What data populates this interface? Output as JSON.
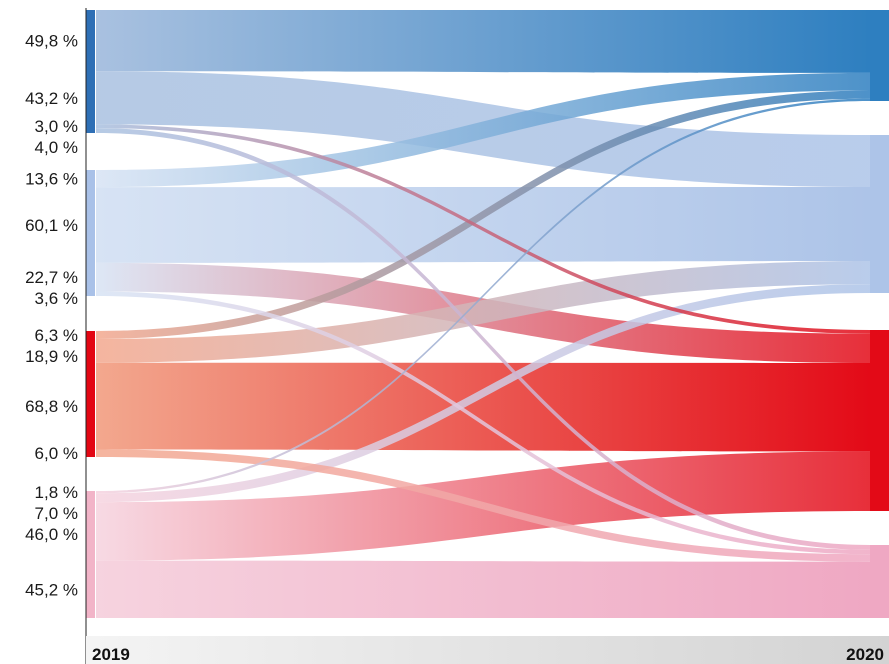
{
  "chart_data": {
    "type": "sankey",
    "x_labels": [
      "2019",
      "2020"
    ],
    "groups_2019": [
      {
        "id": "A",
        "color": "#2e6fb5",
        "light": "#a9c1e0"
      },
      {
        "id": "B",
        "color": "#a9c1e8",
        "light": "#d7e3f4"
      },
      {
        "id": "C",
        "color": "#e30613",
        "light": "#f3a88e"
      },
      {
        "id": "D",
        "color": "#f2b4c8",
        "light": "#f6d3df"
      }
    ],
    "groups_2020": [
      {
        "id": "A",
        "color": "#2e7fc0"
      },
      {
        "id": "B",
        "color": "#adc4e8"
      },
      {
        "id": "C",
        "color": "#e30a17"
      },
      {
        "id": "D",
        "color": "#efa8c3"
      }
    ],
    "flows": [
      {
        "from": "A",
        "to": "A",
        "value": 49.8,
        "label": "49,8 %"
      },
      {
        "from": "A",
        "to": "B",
        "value": 43.2,
        "label": "43,2 %"
      },
      {
        "from": "A",
        "to": "C",
        "value": 3.0,
        "label": "3,0 %"
      },
      {
        "from": "A",
        "to": "D",
        "value": 4.0,
        "label": "4,0 %"
      },
      {
        "from": "B",
        "to": "A",
        "value": 13.6,
        "label": "13,6 %"
      },
      {
        "from": "B",
        "to": "B",
        "value": 60.1,
        "label": "60,1 %"
      },
      {
        "from": "B",
        "to": "C",
        "value": 22.7,
        "label": "22,7 %"
      },
      {
        "from": "B",
        "to": "D",
        "value": 3.6,
        "label": "3,6 %"
      },
      {
        "from": "C",
        "to": "A",
        "value": 6.3,
        "label": "6,3 %"
      },
      {
        "from": "C",
        "to": "B",
        "value": 18.9,
        "label": "18,9 %"
      },
      {
        "from": "C",
        "to": "C",
        "value": 68.8,
        "label": "68,8 %"
      },
      {
        "from": "C",
        "to": "D",
        "value": 6.0,
        "label": "6,0 %"
      },
      {
        "from": "D",
        "to": "A",
        "value": 1.8,
        "label": "1,8 %"
      },
      {
        "from": "D",
        "to": "B",
        "value": 7.0,
        "label": "7,0 %"
      },
      {
        "from": "D",
        "to": "C",
        "value": 46.0,
        "label": "46,0 %"
      },
      {
        "from": "D",
        "to": "D",
        "value": 45.2,
        "label": "45,2 %"
      }
    ]
  }
}
